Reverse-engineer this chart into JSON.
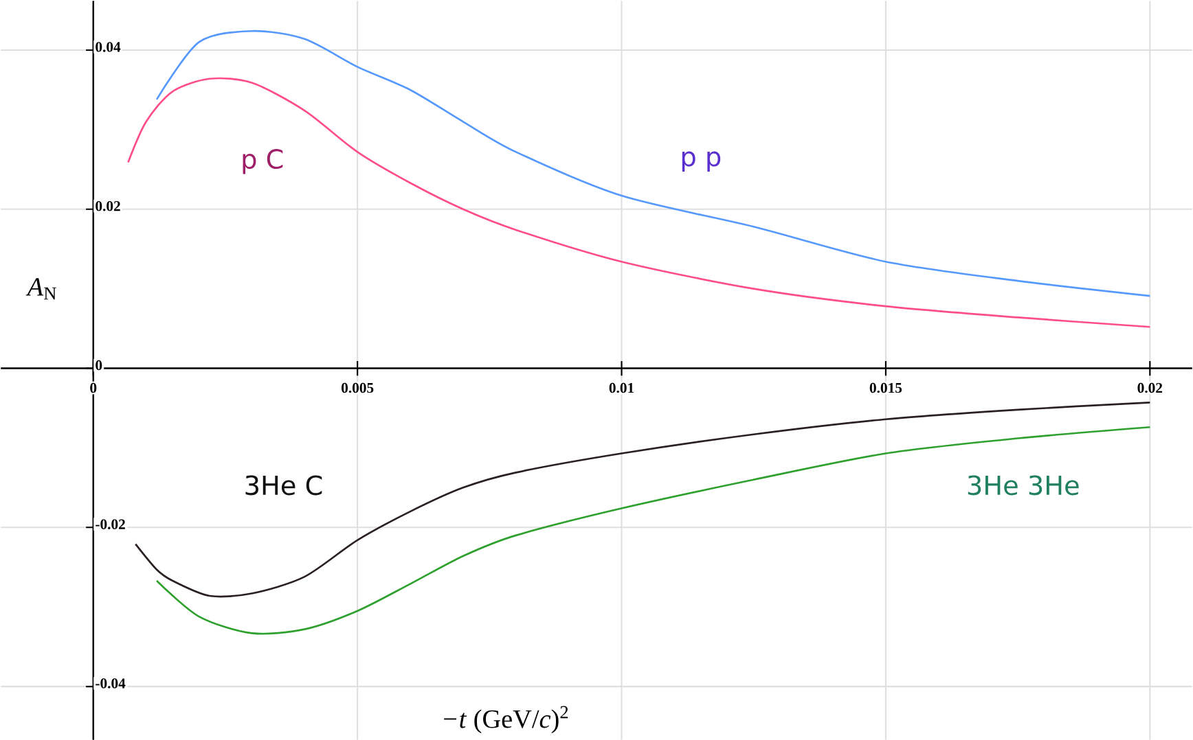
{
  "chart_data": {
    "type": "line",
    "xlabel": "*−t*  (GeV/*c*)$^{2}$",
    "ylabel": "*A*$_{N}$",
    "xlim": [
      -0.00175,
      0.0208
    ],
    "ylim": [
      -0.0467,
      0.0462
    ],
    "xticks": [
      0,
      0.005,
      0.01,
      0.015,
      0.02
    ],
    "yticks": [
      -0.04,
      -0.02,
      0,
      0.02,
      0.04
    ],
    "grid": true,
    "marker": "none",
    "line_style": "solid",
    "series": [
      {
        "name": "p C",
        "color": "#ff4d88",
        "x": [
          0.00066,
          0.001,
          0.0015,
          0.0022,
          0.003,
          0.004,
          0.005,
          0.006,
          0.007,
          0.008,
          0.01,
          0.0125,
          0.015,
          0.0175,
          0.02
        ],
        "values": [
          0.0259,
          0.031,
          0.0348,
          0.0364,
          0.0359,
          0.0324,
          0.0272,
          0.0233,
          0.02,
          0.0174,
          0.0134,
          0.01,
          0.0078,
          0.0064,
          0.0052
        ]
      },
      {
        "name": "p p",
        "color": "#5599ff",
        "x": [
          0.0012,
          0.002,
          0.003,
          0.004,
          0.005,
          0.006,
          0.007,
          0.008,
          0.01,
          0.0125,
          0.015,
          0.0175,
          0.02
        ],
        "values": [
          0.0338,
          0.041,
          0.0424,
          0.0414,
          0.0379,
          0.035,
          0.031,
          0.0272,
          0.0217,
          0.0178,
          0.0134,
          0.011,
          0.0091
        ]
      },
      {
        "name": "3He C",
        "color": "#2a2020",
        "x": [
          0.0008,
          0.0012,
          0.0015,
          0.0022,
          0.003,
          0.004,
          0.005,
          0.006,
          0.007,
          0.008,
          0.01,
          0.0125,
          0.015,
          0.0175,
          0.02
        ],
        "values": [
          -0.0221,
          -0.0253,
          -0.0267,
          -0.0286,
          -0.0283,
          -0.0262,
          -0.0216,
          -0.018,
          -0.015,
          -0.0131,
          -0.0107,
          -0.0083,
          -0.0064,
          -0.0052,
          -0.0043
        ]
      },
      {
        "name": "3He 3He",
        "color": "#2ea02e",
        "x": [
          0.0012,
          0.002,
          0.003,
          0.004,
          0.005,
          0.006,
          0.007,
          0.008,
          0.01,
          0.0125,
          0.015,
          0.0175,
          0.02
        ],
        "values": [
          -0.0267,
          -0.0312,
          -0.0333,
          -0.0328,
          -0.0305,
          -0.0271,
          -0.0236,
          -0.021,
          -0.0176,
          -0.014,
          -0.0107,
          -0.0088,
          -0.0074
        ]
      }
    ]
  }
}
